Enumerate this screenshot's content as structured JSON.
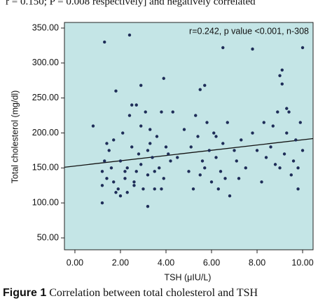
{
  "header_text": "r = 0.150; P = 0.008 respectively] and negatively correlated",
  "chart_data": {
    "type": "scatter",
    "annotation": "r=0.242, p value <0.001, n-308",
    "xlabel": "TSH (μIU/L)",
    "ylabel": "Total cholesterol (mg/dl)",
    "caption_label": "Figure 1",
    "caption": "Correlation between total cholesterol and TSH",
    "background": "#c4e5e6",
    "color": "#1e2d58",
    "line_color": "#111111",
    "xlim": [
      -0.46,
      10.46
    ],
    "ylim": [
      33,
      358
    ],
    "xticks": [
      {
        "value": 0,
        "label": "0.00"
      },
      {
        "value": 2,
        "label": "2.00"
      },
      {
        "value": 4,
        "label": "4.00"
      },
      {
        "value": 6,
        "label": "6.00"
      },
      {
        "value": 8,
        "label": "8.00"
      },
      {
        "value": 10,
        "label": "10.00"
      }
    ],
    "yticks": [
      {
        "value": 50,
        "label": "50.00"
      },
      {
        "value": 100,
        "label": "100.00"
      },
      {
        "value": 150,
        "label": "150.00"
      },
      {
        "value": 200,
        "label": "200.00"
      },
      {
        "value": 250,
        "label": "250.00"
      },
      {
        "value": 300,
        "label": "300.00"
      },
      {
        "value": 350,
        "label": "350.00"
      }
    ],
    "x": [
      0.8,
      1.2,
      1.3,
      1.2,
      1.4,
      1.5,
      1.6,
      1.7,
      1.8,
      1.9,
      2.0,
      2.1,
      2.2,
      2.3,
      2.4,
      2.5,
      2.5,
      2.6,
      2.7,
      2.8,
      2.9,
      3.0,
      3.1,
      3.2,
      3.3,
      3.4,
      3.5,
      3.6,
      3.7,
      3.8,
      3.9,
      4.0,
      1.4,
      1.7,
      2.0,
      2.3,
      2.6,
      2.9,
      3.2,
      3.5,
      3.8,
      4.1,
      4.3,
      4.5,
      4.8,
      5.0,
      5.1,
      5.3,
      5.4,
      5.5,
      5.6,
      5.7,
      5.8,
      5.9,
      6.0,
      6.1,
      6.2,
      6.3,
      6.4,
      6.5,
      6.6,
      6.7,
      6.8,
      7.0,
      7.2,
      7.3,
      7.5,
      7.8,
      8.0,
      8.2,
      8.4,
      8.6,
      8.7,
      8.8,
      8.9,
      9.0,
      9.1,
      9.2,
      9.3,
      9.4,
      9.5,
      9.6,
      9.7,
      9.8,
      9.9,
      10.0,
      1.3,
      2.4,
      6.5,
      7.8,
      10.0,
      3.9,
      2.9,
      5.7,
      5.5,
      1.8,
      9.1,
      9.0,
      1.2,
      3.2,
      2.2,
      2.7,
      3.3,
      4.2,
      5.2,
      6.2,
      7.1,
      8.3,
      9.3,
      9.8
    ],
    "values": [
      210,
      145,
      160,
      125,
      185,
      175,
      150,
      130,
      115,
      120,
      160,
      200,
      135,
      115,
      225,
      240,
      180,
      130,
      145,
      170,
      155,
      120,
      230,
      140,
      185,
      165,
      120,
      195,
      150,
      230,
      135,
      180,
      135,
      190,
      110,
      150,
      125,
      210,
      175,
      145,
      120,
      170,
      230,
      165,
      205,
      145,
      180,
      225,
      195,
      140,
      160,
      150,
      215,
      175,
      130,
      200,
      165,
      120,
      145,
      185,
      135,
      215,
      110,
      175,
      135,
      190,
      150,
      200,
      175,
      130,
      165,
      180,
      210,
      155,
      230,
      150,
      270,
      170,
      200,
      230,
      140,
      160,
      190,
      120,
      215,
      175,
      330,
      340,
      322,
      320,
      322,
      278,
      268,
      268,
      262,
      260,
      290,
      282,
      100,
      95,
      145,
      240,
      205,
      160,
      120,
      195,
      160,
      215,
      235,
      150
    ],
    "trend_line": {
      "x": [
        -0.46,
        10.46
      ],
      "y": [
        151,
        192
      ]
    }
  }
}
